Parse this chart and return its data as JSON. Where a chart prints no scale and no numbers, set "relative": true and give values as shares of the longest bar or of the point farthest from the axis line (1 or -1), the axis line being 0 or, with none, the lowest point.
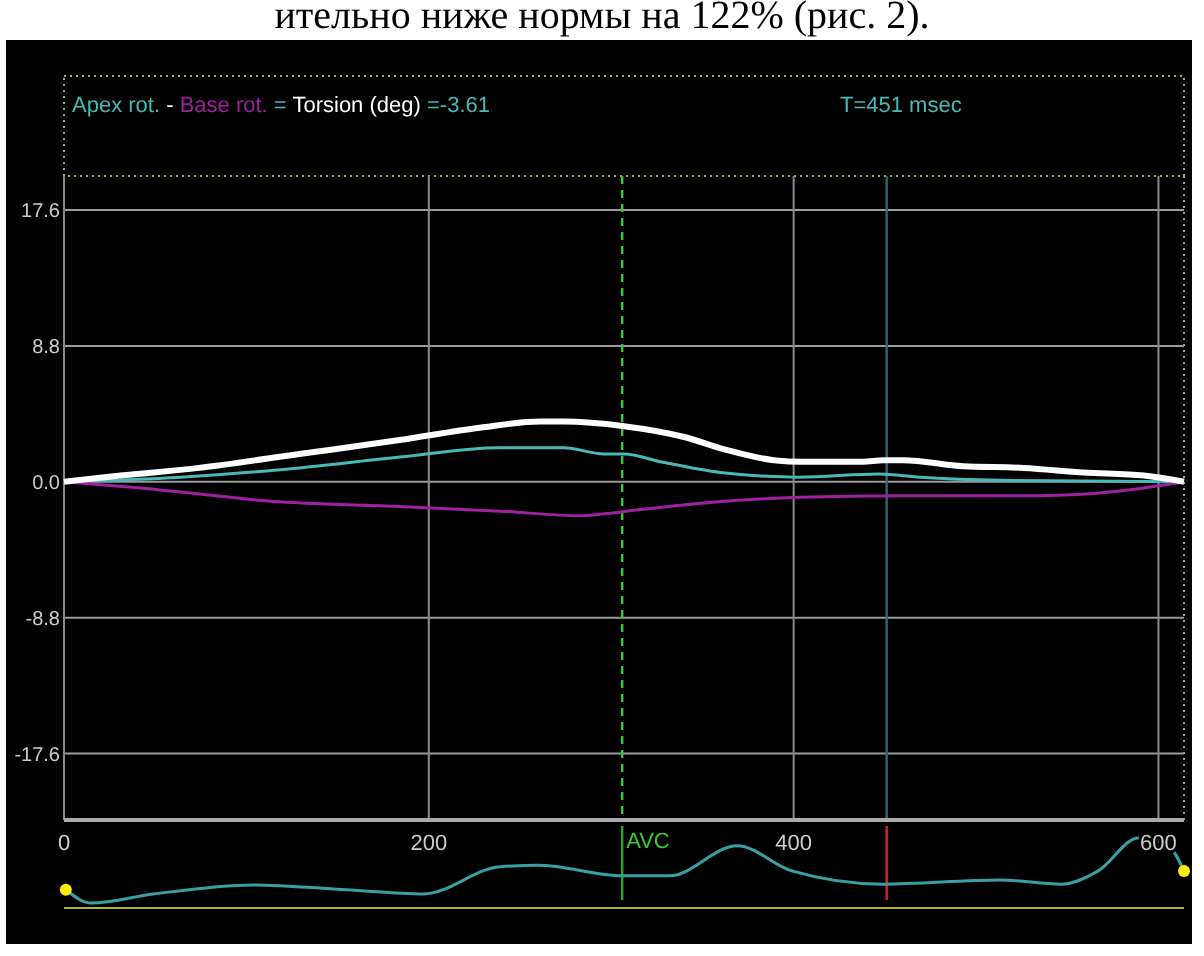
{
  "chart_data": [
    {
      "type": "line",
      "annotations": [
        "-",
        "=",
        "=-3.61",
        "T=451 msec",
        "ительно ниже нормы на 122% (рис. 2)."
      ],
      "legend": "top left",
      "grid": true,
      "xlim": [
        0,
        614
      ],
      "xticks": [
        0,
        200,
        400,
        600
      ],
      "ylim": [
        -21.9,
        19.8
      ],
      "yticks": [
        17.6,
        8.8,
        {
          "value": 0,
          "label": "0.0"
        },
        -8.8,
        -17.6
      ],
      "ref_lines": [
        {
          "axis": "x",
          "value": 306,
          "label": "AVC",
          "color": "#33cc33",
          "line_style": "dashed"
        },
        {
          "axis": "x",
          "value": 451,
          "label": null,
          "color": "#2a6a6a",
          "line_style": "solid"
        }
      ],
      "series": [
        {
          "name": "Apex rot.",
          "color": "#48b8b8",
          "x": [
            0,
            64,
            129,
            184,
            239,
            274,
            296,
            307,
            327,
            360,
            403,
            447,
            469,
            513,
            614
          ],
          "values": [
            0,
            0.3,
            0.9,
            1.6,
            2.2,
            2.2,
            1.8,
            1.8,
            1.3,
            0.6,
            0.3,
            0.5,
            0.3,
            0.1,
            0
          ]
        },
        {
          "name": "Base rot.",
          "color": "#a020a0",
          "x": [
            0,
            42,
            118,
            184,
            239,
            283,
            294,
            316,
            359,
            403,
            458,
            535,
            579,
            614
          ],
          "values": [
            0,
            -0.4,
            -1.3,
            -1.6,
            -1.9,
            -2.2,
            -2.1,
            -1.8,
            -1.3,
            -1.0,
            -0.9,
            -0.9,
            -0.6,
            0
          ]
        },
        {
          "name": "Torsion (deg)",
          "color": "#ffffff",
          "x": [
            0,
            31,
            74,
            129,
            184,
            228,
            261,
            274,
            307,
            340,
            362,
            389,
            405,
            438,
            449,
            460,
            493,
            526,
            559,
            592,
            614
          ],
          "values": [
            0,
            0.4,
            0.9,
            1.8,
            2.7,
            3.5,
            3.9,
            3.9,
            3.6,
            2.9,
            2.1,
            1.4,
            1.3,
            1.3,
            1.4,
            1.4,
            1.0,
            0.9,
            0.6,
            0.4,
            0
          ]
        }
      ]
    },
    {
      "type": "line",
      "relative": true,
      "tick_labels": false,
      "xlim": [
        0,
        614
      ],
      "ref_lines": [
        {
          "axis": "x",
          "value": 306,
          "label": null,
          "color": "#22aa22",
          "line_style": "solid"
        },
        {
          "axis": "x",
          "value": 451,
          "label": null,
          "color": "#dd2222",
          "line_style": "solid"
        }
      ],
      "series": [
        {
          "color": "#3aa0a8",
          "x": [
            1,
            15,
            49,
            104,
            155,
            197,
            239,
            260,
            306,
            332,
            369,
            399,
            449,
            513,
            547,
            567,
            589,
            606,
            614
          ],
          "values": [
            0.26,
            0.07,
            0.2,
            0.33,
            0.26,
            0.2,
            0.59,
            0.61,
            0.46,
            0.46,
            0.89,
            0.53,
            0.34,
            0.4,
            0.34,
            0.53,
            1,
            0.87,
            0.53
          ]
        }
      ]
    }
  ]
}
